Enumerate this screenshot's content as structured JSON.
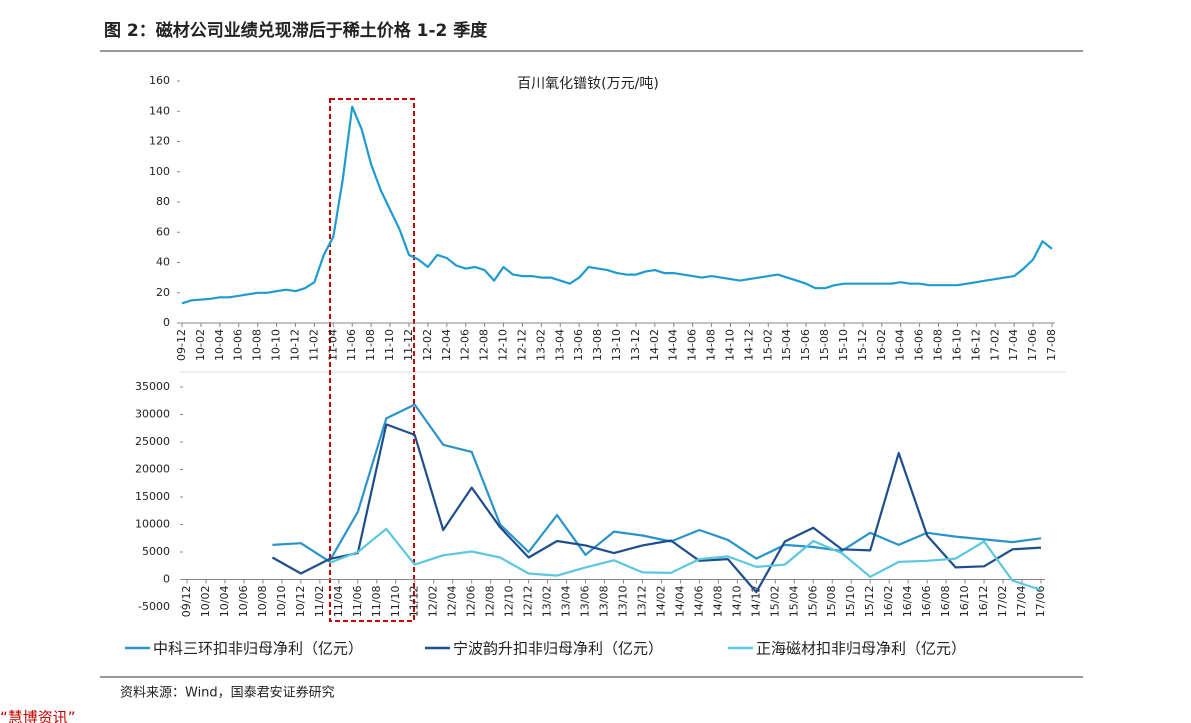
{
  "header": {
    "title": "图 2：磁材公司业绩兑现滞后于稀土价格 1-2 季度"
  },
  "chart_data": [
    {
      "type": "line",
      "title": "百川氧化镨钕(万元/吨)",
      "color": "#1f9bcf",
      "categories": [
        "09-12",
        "10-02",
        "10-04",
        "10-06",
        "10-08",
        "10-10",
        "10-12",
        "11-02",
        "11-04",
        "11-06",
        "11-08",
        "11-10",
        "11-12",
        "12-02",
        "12-04",
        "12-06",
        "12-08",
        "12-10",
        "12-12",
        "13-02",
        "13-04",
        "13-06",
        "13-08",
        "13-10",
        "13-12",
        "14-02",
        "14-04",
        "14-06",
        "14-08",
        "14-10",
        "14-12",
        "15-02",
        "15-04",
        "15-06",
        "15-08",
        "15-10",
        "15-12",
        "16-02",
        "16-04",
        "16-06",
        "16-08",
        "16-10",
        "16-12",
        "17-02",
        "17-04",
        "17-06",
        "17-08"
      ],
      "x": [
        "09-12",
        "10-01",
        "10-02",
        "10-03",
        "10-04",
        "10-05",
        "10-06",
        "10-07",
        "10-08",
        "10-09",
        "10-10",
        "10-11",
        "10-12",
        "11-01",
        "11-02",
        "11-03",
        "11-04",
        "11-05",
        "11-06",
        "11-07",
        "11-08",
        "11-09",
        "11-10",
        "11-11",
        "11-12",
        "12-01",
        "12-02",
        "12-03",
        "12-04",
        "12-05",
        "12-06",
        "12-07",
        "12-08",
        "12-09",
        "12-10",
        "12-11",
        "12-12",
        "13-01",
        "13-02",
        "13-03",
        "13-04",
        "13-05",
        "13-06",
        "13-07",
        "13-08",
        "13-09",
        "13-10",
        "13-11",
        "13-12",
        "14-01",
        "14-02",
        "14-03",
        "14-04",
        "14-05",
        "14-06",
        "14-07",
        "14-08",
        "14-09",
        "14-10",
        "14-11",
        "14-12",
        "15-01",
        "15-02",
        "15-03",
        "15-04",
        "15-05",
        "15-06",
        "15-07",
        "15-08",
        "15-09",
        "15-10",
        "15-11",
        "15-12",
        "16-01",
        "16-02",
        "16-03",
        "16-04",
        "16-05",
        "16-06",
        "16-07",
        "16-08",
        "16-09",
        "16-10",
        "16-11",
        "16-12",
        "17-01",
        "17-02",
        "17-03",
        "17-04",
        "17-05",
        "17-06",
        "17-07",
        "17-08"
      ],
      "values": [
        13,
        15,
        15.5,
        16,
        17,
        17,
        18,
        19,
        20,
        20,
        21,
        22,
        21,
        23,
        27,
        45,
        57,
        95,
        143,
        128,
        105,
        88,
        75,
        62,
        45,
        42,
        37,
        45,
        43,
        38,
        36,
        37,
        35,
        28,
        37,
        32,
        31,
        31,
        30,
        30,
        28,
        26,
        30,
        37,
        36,
        35,
        33,
        32,
        32,
        34,
        35,
        33,
        33,
        32,
        31,
        30,
        31,
        30,
        29,
        28,
        29,
        30,
        31,
        32,
        30,
        28,
        26,
        23,
        23,
        25,
        26,
        26,
        26,
        26,
        26,
        26,
        27,
        26,
        26,
        25,
        25,
        25,
        25,
        26,
        27,
        28,
        29,
        30,
        31,
        36,
        42,
        54,
        49
      ],
      "ylim": [
        0,
        160
      ],
      "yticks": [
        0,
        20,
        40,
        60,
        80,
        100,
        120,
        140,
        160
      ]
    },
    {
      "type": "line",
      "categories": [
        "09/12",
        "10/02",
        "10/04",
        "10/06",
        "10/08",
        "10/10",
        "10/12",
        "11/02",
        "11/04",
        "11/06",
        "11/08",
        "11/10",
        "11/12",
        "12/02",
        "12/04",
        "12/06",
        "12/08",
        "12/10",
        "12/12",
        "13/02",
        "13/04",
        "13/06",
        "13/08",
        "13/10",
        "13/12",
        "14/02",
        "14/04",
        "14/06",
        "14/08",
        "14/10",
        "14/12",
        "15/02",
        "15/04",
        "15/06",
        "15/08",
        "15/10",
        "15/12",
        "16/02",
        "16/04",
        "16/06",
        "16/08",
        "16/10",
        "16/12",
        "17/02",
        "17/04",
        "17/06"
      ],
      "series": [
        {
          "name": "中科三环扣非归母净利（亿元）",
          "color": "#2a93c9",
          "x": [
            "10/09",
            "10/12",
            "11/03",
            "11/06",
            "11/09",
            "11/12",
            "12/03",
            "12/06",
            "12/09",
            "12/12",
            "13/03",
            "13/06",
            "13/09",
            "13/12",
            "14/03",
            "14/06",
            "14/09",
            "14/12",
            "15/03",
            "15/06",
            "15/09",
            "15/12",
            "16/03",
            "16/06",
            "16/09",
            "16/12",
            "17/03",
            "17/06"
          ],
          "values": [
            6300,
            6600,
            3300,
            12300,
            29300,
            31800,
            24500,
            23200,
            10000,
            5000,
            11700,
            4500,
            8700,
            8000,
            6900,
            9000,
            7200,
            3800,
            6300,
            5900,
            5200,
            8500,
            6300,
            8500,
            7800,
            7300,
            6800,
            7500
          ]
        },
        {
          "name": "宁波韵升扣非归母净利（亿元）",
          "color": "#1f4e8c",
          "x": [
            "10/09",
            "10/12",
            "11/03",
            "11/06",
            "11/09",
            "11/12",
            "12/03",
            "12/06",
            "12/09",
            "12/12",
            "13/03",
            "13/06",
            "13/09",
            "13/12",
            "14/03",
            "14/06",
            "14/09",
            "14/12",
            "15/03",
            "15/06",
            "15/09",
            "15/12",
            "16/03",
            "16/06",
            "16/09",
            "16/12",
            "17/03",
            "17/06"
          ],
          "values": [
            4000,
            1100,
            3700,
            4800,
            28200,
            26300,
            9000,
            16700,
            9500,
            4000,
            7000,
            6200,
            4800,
            6200,
            7100,
            3400,
            3700,
            -2300,
            6900,
            9400,
            5500,
            5300,
            23000,
            8000,
            2200,
            2400,
            5500,
            5800
          ]
        },
        {
          "name": "正海磁材扣非归母净利（亿元）",
          "color": "#5bc8e0",
          "x": [
            "11/03",
            "11/06",
            "11/09",
            "11/12",
            "12/03",
            "12/06",
            "12/09",
            "12/12",
            "13/03",
            "13/06",
            "13/09",
            "13/12",
            "14/03",
            "14/06",
            "14/09",
            "14/12",
            "15/03",
            "15/06",
            "15/09",
            "15/12",
            "16/03",
            "16/06",
            "16/09",
            "16/12",
            "17/03",
            "17/06"
          ],
          "values": [
            3000,
            5000,
            9200,
            2700,
            4400,
            5100,
            4000,
            1100,
            700,
            2200,
            3500,
            1300,
            1200,
            3700,
            4200,
            2300,
            2700,
            7000,
            4800,
            500,
            3200,
            3400,
            3800,
            6900,
            -200,
            -1900
          ]
        }
      ],
      "ylim": [
        -5000,
        35000
      ],
      "yticks": [
        -5000,
        0,
        5000,
        10000,
        15000,
        20000,
        25000,
        30000,
        35000
      ]
    }
  ],
  "footer": {
    "source": "资料来源：Wind，国泰君安证券研究",
    "note": "“慧博资讯”"
  }
}
